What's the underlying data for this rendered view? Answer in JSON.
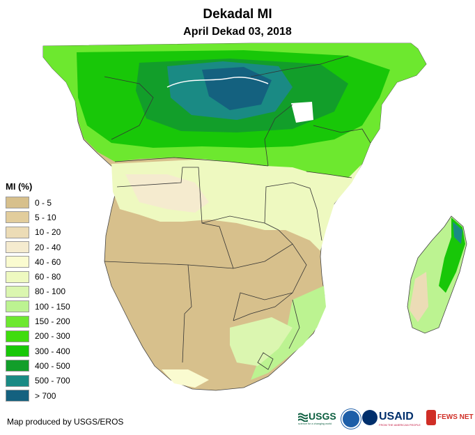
{
  "title": "Dekadal MI",
  "subtitle": "April Dekad 03, 2018",
  "legend": {
    "title": "MI (%)",
    "items": [
      {
        "label": "0 - 5",
        "color": "#d7c08c"
      },
      {
        "label": "5 - 10",
        "color": "#e2cd9c"
      },
      {
        "label": "10 - 20",
        "color": "#ecdcb6"
      },
      {
        "label": "20 - 40",
        "color": "#f5ebcf"
      },
      {
        "label": "40 - 60",
        "color": "#fafbd0"
      },
      {
        "label": "60 - 80",
        "color": "#eef9c0"
      },
      {
        "label": "80 - 100",
        "color": "#dbf6b0"
      },
      {
        "label": "100 - 150",
        "color": "#bcf391"
      },
      {
        "label": "150 - 200",
        "color": "#6de82f"
      },
      {
        "label": "200 - 300",
        "color": "#3fdc0e"
      },
      {
        "label": "300 - 400",
        "color": "#18c708"
      },
      {
        "label": "400 - 500",
        "color": "#129e2a"
      },
      {
        "label": "500 - 700",
        "color": "#1a8a84"
      },
      {
        "label": "> 700",
        "color": "#14617f"
      }
    ]
  },
  "credit": "Map produced by USGS/EROS",
  "logos": {
    "usgs": "USGS",
    "usgs_tagline": "science for a changing world",
    "usaid": "USAID",
    "usaid_tagline": "FROM THE AMERICAN PEOPLE",
    "fewsnet": "FEWS NET"
  }
}
